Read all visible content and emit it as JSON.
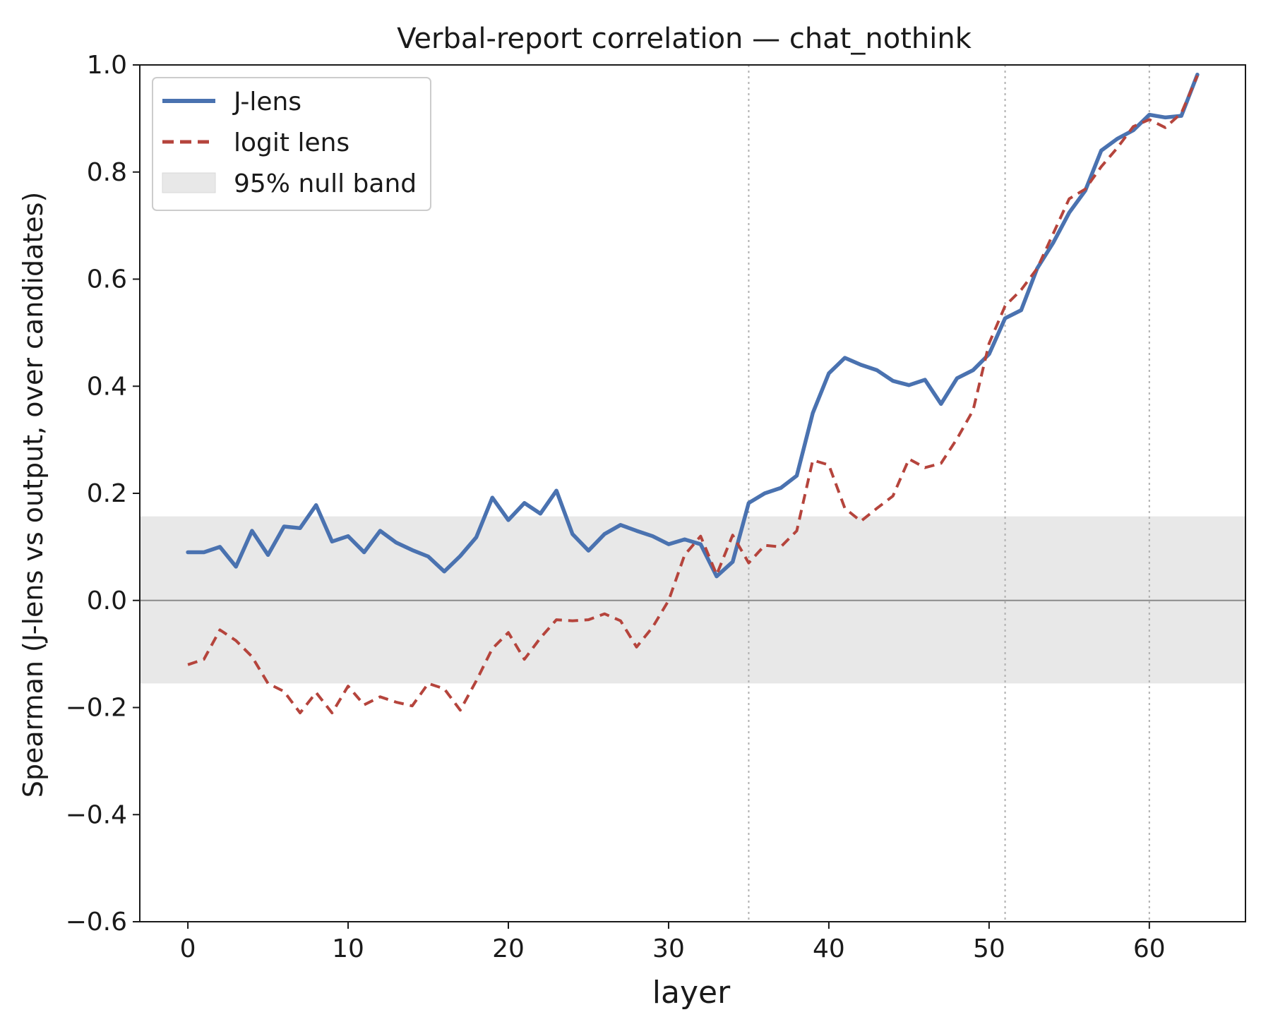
{
  "chart_data": {
    "type": "line",
    "title": "Verbal-report correlation — chat_nothink",
    "xlabel": "layer",
    "ylabel": "Spearman (J-lens vs output, over candidates)",
    "xlim": [
      -3,
      66
    ],
    "ylim": [
      -0.6,
      1.0
    ],
    "x_ticks": [
      0,
      10,
      20,
      30,
      40,
      50,
      60
    ],
    "x_tick_labels": [
      "0",
      "10",
      "20",
      "30",
      "40",
      "50",
      "60"
    ],
    "y_ticks": [
      -0.6,
      -0.4,
      -0.2,
      0.0,
      0.2,
      0.4,
      0.6,
      0.8,
      1.0
    ],
    "y_tick_labels": [
      "−0.6",
      "−0.4",
      "−0.2",
      "0.0",
      "0.2",
      "0.4",
      "0.6",
      "0.8",
      "1.0"
    ],
    "grid": false,
    "legend_position": "top-left",
    "null_band": {
      "name": "95% null band",
      "low": -0.155,
      "high": 0.157,
      "color": "#e8e8e8"
    },
    "zero_line": 0.0,
    "vertical_lines": [
      35,
      51,
      60
    ],
    "series": [
      {
        "name": "J-lens",
        "style": "solid",
        "color": "#4a72b0",
        "x": [
          0,
          1,
          2,
          3,
          4,
          5,
          6,
          7,
          8,
          9,
          10,
          11,
          12,
          13,
          14,
          15,
          16,
          17,
          18,
          19,
          20,
          21,
          22,
          23,
          24,
          25,
          26,
          27,
          28,
          29,
          30,
          31,
          32,
          33,
          34,
          35,
          36,
          37,
          38,
          39,
          40,
          41,
          42,
          43,
          44,
          45,
          46,
          47,
          48,
          49,
          50,
          51,
          52,
          53,
          54,
          55,
          56,
          57,
          58,
          59,
          60,
          61,
          62,
          63
        ],
        "values": [
          0.09,
          0.09,
          0.1,
          0.063,
          0.13,
          0.085,
          0.138,
          0.135,
          0.178,
          0.11,
          0.12,
          0.09,
          0.13,
          0.108,
          0.094,
          0.082,
          0.054,
          0.083,
          0.118,
          0.192,
          0.15,
          0.182,
          0.162,
          0.205,
          0.124,
          0.093,
          0.124,
          0.141,
          0.13,
          0.12,
          0.105,
          0.114,
          0.105,
          0.045,
          0.072,
          0.182,
          0.2,
          0.21,
          0.233,
          0.35,
          0.424,
          0.453,
          0.44,
          0.43,
          0.41,
          0.402,
          0.412,
          0.367,
          0.415,
          0.43,
          0.46,
          0.527,
          0.542,
          0.62,
          0.668,
          0.724,
          0.765,
          0.84,
          0.862,
          0.878,
          0.907,
          0.902,
          0.905,
          0.982
        ]
      },
      {
        "name": "logit lens",
        "style": "dashed",
        "color": "#b5443c",
        "x": [
          0,
          1,
          2,
          3,
          4,
          5,
          6,
          7,
          8,
          9,
          10,
          11,
          12,
          13,
          14,
          15,
          16,
          17,
          18,
          19,
          20,
          21,
          22,
          23,
          24,
          25,
          26,
          27,
          28,
          29,
          30,
          31,
          32,
          33,
          34,
          35,
          36,
          37,
          38,
          39,
          40,
          41,
          42,
          43,
          44,
          45,
          46,
          47,
          48,
          49,
          50,
          51,
          52,
          53,
          54,
          55,
          56,
          57,
          58,
          59,
          60,
          61,
          62,
          63
        ],
        "values": [
          -0.12,
          -0.11,
          -0.055,
          -0.075,
          -0.105,
          -0.155,
          -0.17,
          -0.21,
          -0.172,
          -0.21,
          -0.16,
          -0.195,
          -0.18,
          -0.19,
          -0.197,
          -0.155,
          -0.165,
          -0.205,
          -0.15,
          -0.09,
          -0.06,
          -0.11,
          -0.07,
          -0.036,
          -0.038,
          -0.036,
          -0.025,
          -0.038,
          -0.087,
          -0.05,
          0.0,
          0.085,
          0.12,
          0.048,
          0.122,
          0.07,
          0.103,
          0.1,
          0.13,
          0.262,
          0.253,
          0.172,
          0.148,
          0.172,
          0.195,
          0.264,
          0.248,
          0.256,
          0.302,
          0.355,
          0.48,
          0.55,
          0.58,
          0.62,
          0.685,
          0.75,
          0.768,
          0.81,
          0.845,
          0.885,
          0.898,
          0.883,
          0.91,
          0.98
        ]
      }
    ]
  }
}
